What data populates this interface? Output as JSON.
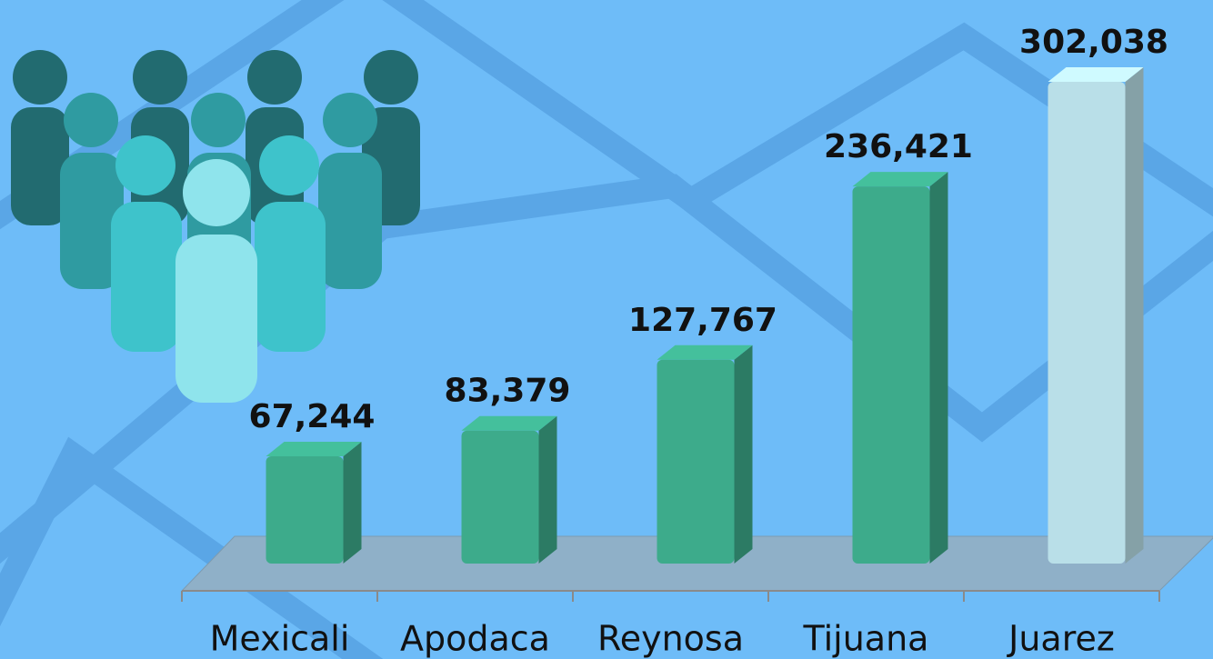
{
  "chart_data": {
    "type": "bar3d",
    "categories": [
      "Mexicali",
      "Apodaca",
      "Reynosa",
      "Tijuana",
      "Juarez"
    ],
    "values": [
      67244,
      83379,
      127767,
      236421,
      302038
    ],
    "value_labels": [
      "67,244",
      "83,379",
      "127,767",
      "236,421",
      "302,038"
    ],
    "colors": [
      "#3dab8b",
      "#3dab8b",
      "#3dab8b",
      "#3dab8b",
      "#b9dfe8"
    ]
  }
}
